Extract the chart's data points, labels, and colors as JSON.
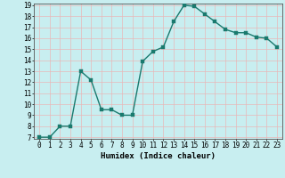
{
  "x": [
    0,
    1,
    2,
    3,
    4,
    5,
    6,
    7,
    8,
    9,
    10,
    11,
    12,
    13,
    14,
    15,
    16,
    17,
    18,
    19,
    20,
    21,
    22,
    23
  ],
  "y": [
    7,
    7,
    8,
    8,
    13,
    12.2,
    9.5,
    9.5,
    9,
    9,
    13.9,
    14.8,
    15.2,
    17.5,
    19.0,
    18.9,
    18.2,
    17.5,
    16.8,
    16.5,
    16.5,
    16.1,
    16.0,
    15.2
  ],
  "line_color": "#1a7a6e",
  "marker_color": "#1a7a6e",
  "bg_color": "#c8eef0",
  "grid_color": "#e8b8b8",
  "xlabel": "Humidex (Indice chaleur)",
  "ylim": [
    7,
    19
  ],
  "xlim": [
    -0.5,
    23.5
  ],
  "yticks": [
    7,
    8,
    9,
    10,
    11,
    12,
    13,
    14,
    15,
    16,
    17,
    18,
    19
  ],
  "xticks": [
    0,
    1,
    2,
    3,
    4,
    5,
    6,
    7,
    8,
    9,
    10,
    11,
    12,
    13,
    14,
    15,
    16,
    17,
    18,
    19,
    20,
    21,
    22,
    23
  ],
  "xtick_labels": [
    "0",
    "1",
    "2",
    "3",
    "4",
    "5",
    "6",
    "7",
    "8",
    "9",
    "10",
    "11",
    "12",
    "13",
    "14",
    "15",
    "16",
    "17",
    "18",
    "19",
    "20",
    "21",
    "22",
    "23"
  ],
  "marker_size": 2.5,
  "line_width": 1.0,
  "tick_fontsize": 5.5,
  "xlabel_fontsize": 6.5
}
